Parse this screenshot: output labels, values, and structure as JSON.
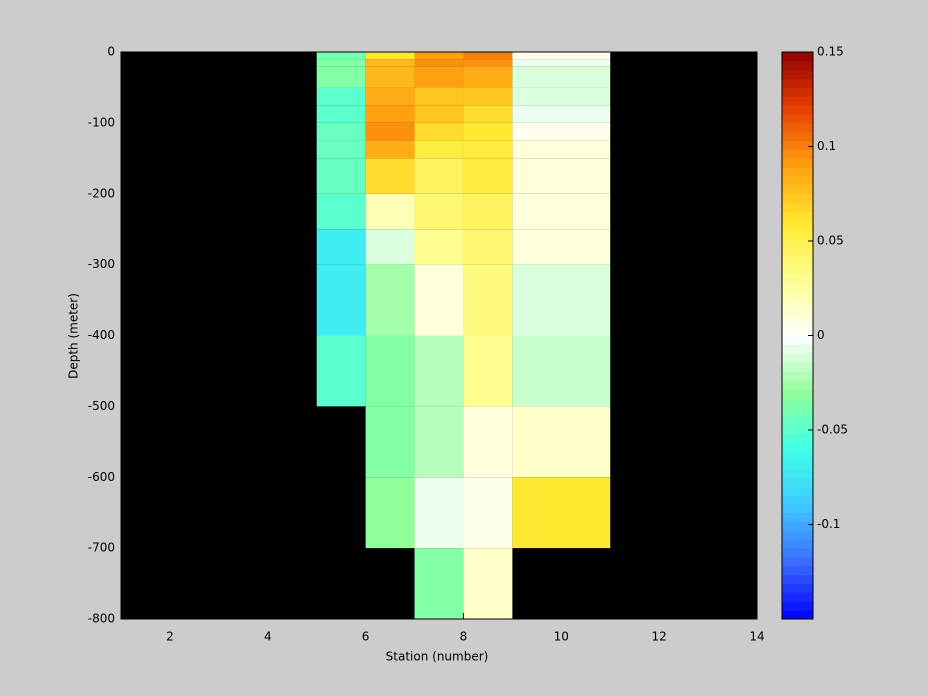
{
  "chart_data": {
    "type": "heatmap",
    "xlabel": "Station (number)",
    "ylabel": "Depth (meter)",
    "x_edges": [
      5,
      6,
      7,
      8,
      9,
      11
    ],
    "y_edges": [
      0,
      -10,
      -20,
      -50,
      -75,
      -100,
      -125,
      -150,
      -200,
      -250,
      -300,
      -400,
      -500,
      -600,
      -700,
      -800
    ],
    "z": [
      [
        -0.04,
        0.06,
        0.09,
        0.1,
        0.005
      ],
      [
        -0.035,
        0.08,
        0.095,
        0.095,
        -0.005
      ],
      [
        -0.035,
        0.08,
        0.09,
        0.085,
        -0.01
      ],
      [
        -0.05,
        0.085,
        0.075,
        0.075,
        -0.01
      ],
      [
        -0.05,
        0.09,
        0.075,
        0.065,
        -0.005
      ],
      [
        -0.045,
        0.095,
        0.065,
        0.06,
        0.005
      ],
      [
        -0.045,
        0.085,
        0.055,
        0.055,
        0.01
      ],
      [
        -0.045,
        0.065,
        0.045,
        0.055,
        0.01
      ],
      [
        -0.05,
        0.02,
        0.04,
        0.045,
        0.01
      ],
      [
        -0.07,
        -0.01,
        0.03,
        0.04,
        0.01
      ],
      [
        -0.07,
        -0.025,
        0.01,
        0.035,
        -0.01
      ],
      [
        -0.05,
        -0.035,
        -0.02,
        0.03,
        -0.015
      ],
      [
        null,
        -0.035,
        -0.02,
        0.01,
        0.015
      ],
      [
        null,
        -0.03,
        -0.005,
        0.005,
        0.06
      ],
      [
        null,
        null,
        -0.035,
        0.015,
        null
      ]
    ],
    "xlim": [
      1,
      14
    ],
    "ylim": [
      -800,
      0
    ],
    "xticks": [
      2,
      4,
      6,
      8,
      10,
      12,
      14
    ],
    "yticks": [
      -800,
      -700,
      -600,
      -500,
      -400,
      -300,
      -200,
      -100,
      0
    ],
    "clim": [
      -0.15,
      0.15
    ],
    "cticks": [
      -0.1,
      -0.05,
      0,
      0.05,
      0.1,
      0.15
    ],
    "colormap": [
      "#0000ff",
      "#3a6cff",
      "#40c8ff",
      "#40ffe8",
      "#90ff98",
      "#ffffff",
      "#ffff90",
      "#ffe830",
      "#ffa010",
      "#e84000",
      "#900000"
    ],
    "missing_color": "#000000"
  }
}
